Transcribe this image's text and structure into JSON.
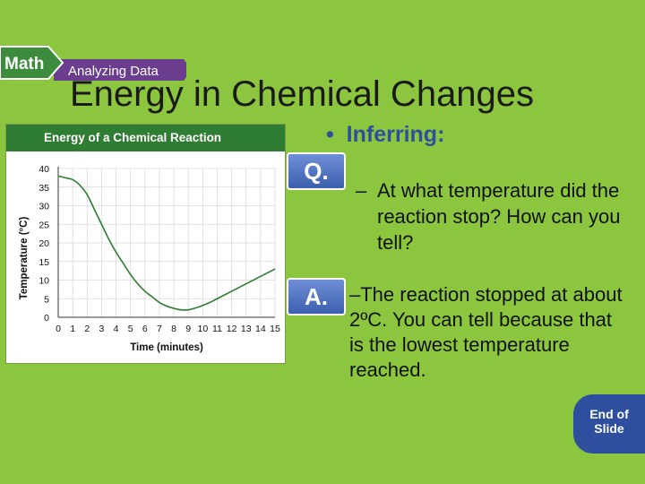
{
  "banner": {
    "math_label": "Math",
    "subtitle": "Analyzing Data"
  },
  "slide_title": "Energy in Chemical Changes",
  "bullet": {
    "marker": "•",
    "text": "Inferring:"
  },
  "q_badge": "Q.",
  "a_badge": "A.",
  "question": {
    "dash": "–",
    "text": "At what temperature did the reaction stop? How can you tell?"
  },
  "answer": "–The reaction stopped at about 2ºC. You can tell because that is the lowest temperature reached.",
  "end_button": {
    "line1": "End of",
    "line2": "Slide"
  },
  "colors": {
    "background": "#8cc63f",
    "chart_header": "#2e7d32",
    "curve": "#2e7d32",
    "accent_blue": "#2e4f9e",
    "banner_purple": "#6a3d8f"
  },
  "chart_data": {
    "type": "line",
    "title": "Energy of a Chemical Reaction",
    "xlabel": "Time (minutes)",
    "ylabel": "Temperature (°C)",
    "xlim": [
      0,
      15
    ],
    "ylim": [
      0,
      40
    ],
    "xticks": [
      "0",
      "1",
      "2",
      "3",
      "4",
      "5",
      "6",
      "7",
      "8",
      "9",
      "10",
      "11",
      "12",
      "13",
      "14",
      "15"
    ],
    "yticks": [
      "0",
      "5",
      "10",
      "15",
      "20",
      "25",
      "30",
      "35",
      "40"
    ],
    "grid": true,
    "series": [
      {
        "x": [
          0,
          0.5,
          1,
          1.5,
          2,
          2.5,
          3,
          3.5,
          4,
          4.5,
          5,
          5.5,
          6,
          6.5,
          7,
          7.5,
          8,
          8.5,
          9,
          9.5,
          10,
          10.5,
          11,
          12,
          13,
          14,
          15
        ],
        "values": [
          38,
          37.5,
          37,
          35.5,
          33,
          29,
          25,
          21,
          17.5,
          14.5,
          11.5,
          9,
          7,
          5.5,
          4,
          3,
          2.4,
          2,
          2,
          2.5,
          3.2,
          4,
          5,
          7,
          9,
          11,
          13
        ]
      }
    ]
  }
}
